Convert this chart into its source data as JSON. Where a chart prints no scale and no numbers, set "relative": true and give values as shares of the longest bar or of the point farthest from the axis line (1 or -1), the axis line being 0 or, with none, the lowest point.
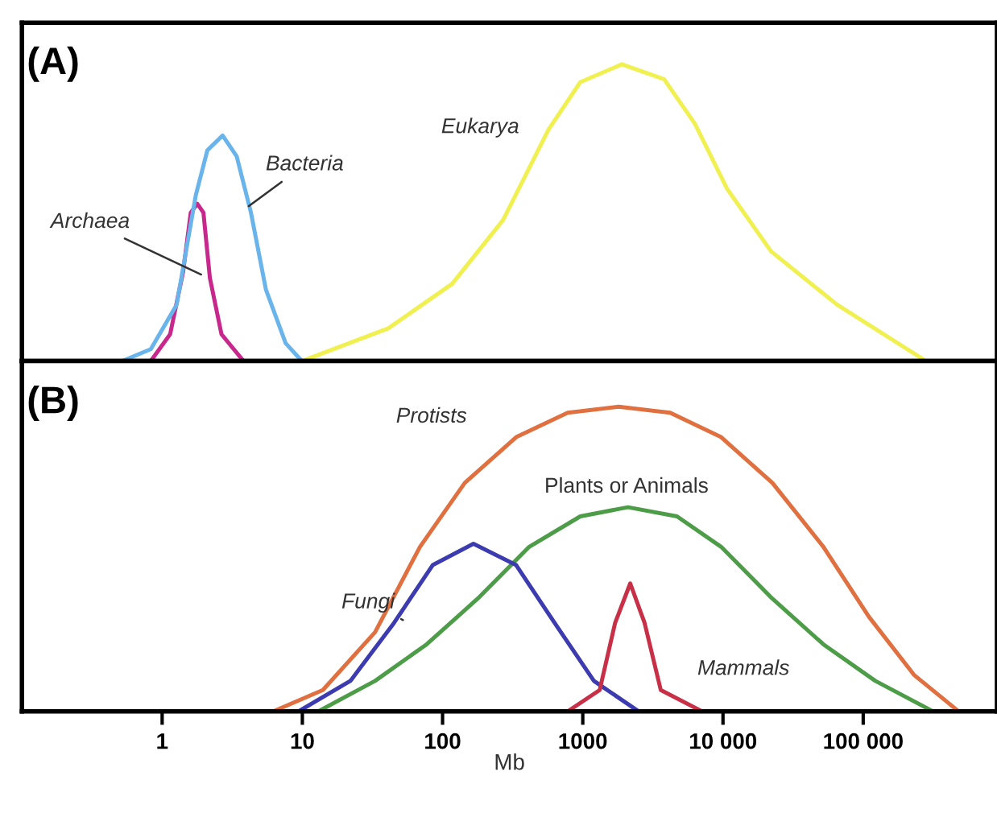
{
  "chart_data": [
    {
      "type": "line",
      "title": "(A)",
      "relative": true,
      "log": "x",
      "xlim": [
        0.1,
        900000
      ],
      "tick_labels": false,
      "grid": false,
      "marker": "none",
      "line_style": "solid",
      "series": [
        {
          "name": "Archaea",
          "color": "#c8288c",
          "x": [
            0.83,
            1.14,
            1.41,
            1.6,
            1.78,
            1.97,
            2.19,
            2.65,
            3.8
          ],
          "values": [
            0,
            0.09,
            0.3,
            0.5,
            0.53,
            0.5,
            0.28,
            0.09,
            0
          ]
        },
        {
          "name": "Bacteria",
          "color": "#6ab4ec",
          "x": [
            0.52,
            0.83,
            1.27,
            1.74,
            2.1,
            2.7,
            3.4,
            4.3,
            5.5,
            7.6,
            9.9
          ],
          "values": [
            0,
            0.04,
            0.19,
            0.56,
            0.71,
            0.76,
            0.69,
            0.5,
            0.24,
            0.06,
            0
          ]
        },
        {
          "name": "Eukarya",
          "color": "#f0f050",
          "x": [
            10,
            41,
            117,
            270,
            570,
            960,
            1900,
            3800,
            6300,
            10700,
            22000,
            65000,
            280000
          ],
          "values": [
            0,
            0.11,
            0.26,
            0.475,
            0.78,
            0.94,
            1.0,
            0.95,
            0.8,
            0.58,
            0.37,
            0.19,
            0
          ]
        }
      ]
    },
    {
      "type": "line",
      "title": "(B)",
      "xlabel": "Mb",
      "relative": true,
      "log": "x",
      "xlim": [
        0.1,
        900000
      ],
      "xticks": [
        1,
        10,
        100,
        1000,
        {
          "value": 10000,
          "label": "10 000"
        },
        {
          "value": 100000,
          "label": "100 000"
        }
      ],
      "tick_labels": "x",
      "grid": false,
      "marker": "none",
      "line_style": "solid",
      "series": [
        {
          "name": "Protists",
          "color": "#e07040",
          "x": [
            6.2,
            14,
            33,
            69,
            144,
            335,
            780,
            1800,
            4200,
            9700,
            22500,
            52000,
            110000,
            230000,
            480000
          ],
          "values": [
            0,
            0.07,
            0.26,
            0.54,
            0.75,
            0.9,
            0.98,
            1,
            0.98,
            0.9,
            0.75,
            0.54,
            0.31,
            0.12,
            0
          ]
        },
        {
          "name": "Plants or Animals",
          "color": "#4c9c48",
          "x": [
            13,
            33,
            77,
            178,
            415,
            960,
            2100,
            4700,
            9700,
            22500,
            52000,
            122000,
            315000
          ],
          "values": [
            0,
            0.1,
            0.22,
            0.37,
            0.54,
            0.64,
            0.67,
            0.64,
            0.54,
            0.37,
            0.22,
            0.1,
            0
          ]
        },
        {
          "name": "Fungi",
          "color": "#3c3cb0",
          "x": [
            9.4,
            22,
            45,
            85,
            166,
            335,
            630,
            1200,
            2500
          ],
          "values": [
            0,
            0.1,
            0.29,
            0.48,
            0.55,
            0.48,
            0.29,
            0.1,
            0
          ]
        },
        {
          "name": "Mammals",
          "color": "#c83048",
          "x": [
            780,
            1320,
            1700,
            2180,
            2760,
            3600,
            7100
          ],
          "values": [
            0,
            0.07,
            0.29,
            0.42,
            0.29,
            0.07,
            0
          ]
        }
      ]
    }
  ]
}
